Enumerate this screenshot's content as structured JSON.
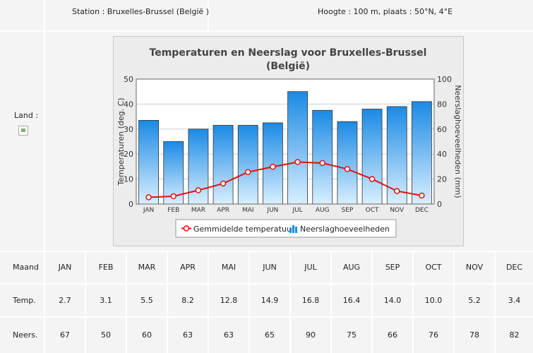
{
  "header": {
    "station": "Station : Bruxelles-Brussel (België )",
    "height": "Hoogte : 100 m, plaats : 50°N, 4°E"
  },
  "sidebar": {
    "land_label": "Land :"
  },
  "table": {
    "row_labels": {
      "month": "Maand",
      "temp": "Temp.",
      "precip": "Neers."
    },
    "months": [
      "JAN",
      "FEB",
      "MAR",
      "APR",
      "MAI",
      "JUN",
      "JUL",
      "AUG",
      "SEP",
      "OCT",
      "NOV",
      "DEC"
    ],
    "temp": [
      "2.7",
      "3.1",
      "5.5",
      "8.2",
      "12.8",
      "14.9",
      "16.8",
      "16.4",
      "14.0",
      "10.0",
      "5.2",
      "3.4"
    ],
    "precip": [
      "67",
      "50",
      "60",
      "63",
      "63",
      "65",
      "90",
      "75",
      "66",
      "76",
      "78",
      "82"
    ]
  },
  "chart_data": {
    "type": "bar",
    "title_line1": "Temperaturen en Neerslag voor Bruxelles-Brussel",
    "title_line2": "(België)",
    "categories": [
      "JAN",
      "FEB",
      "MAR",
      "APR",
      "MAI",
      "JUN",
      "JUL",
      "AUG",
      "SEP",
      "OCT",
      "NOV",
      "DEC"
    ],
    "ylabel_left": "Temperaturen (deg. C)",
    "ylabel_right": "Neerslaghoeveelheden (mm)",
    "ylim_left": [
      0,
      50
    ],
    "ylim_right": [
      0,
      100
    ],
    "yticks_left": [
      0,
      10,
      20,
      30,
      40,
      50
    ],
    "yticks_right": [
      0,
      20,
      40,
      60,
      80,
      100
    ],
    "grid": true,
    "legend_position": "bottom-center",
    "series": [
      {
        "name": "Neerslaghoeveelheden",
        "kind": "bar",
        "axis": "right",
        "values": [
          67,
          50,
          60,
          63,
          63,
          65,
          90,
          75,
          66,
          76,
          78,
          82
        ],
        "color": "#1e8fe6"
      },
      {
        "name": "Gemmidelde temperatuur",
        "kind": "line",
        "axis": "left",
        "values": [
          2.7,
          3.1,
          5.5,
          8.2,
          12.8,
          14.9,
          16.8,
          16.4,
          14.0,
          10.0,
          5.2,
          3.4
        ],
        "color": "#e01010"
      }
    ]
  }
}
